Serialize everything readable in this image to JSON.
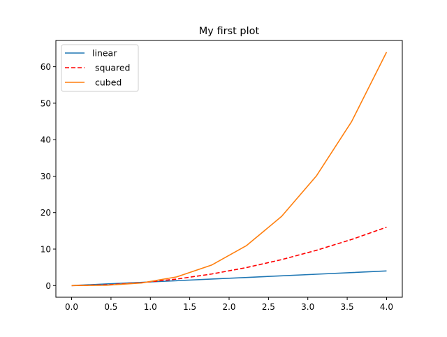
{
  "chart_data": {
    "type": "line",
    "title": "My first plot",
    "xlabel": "",
    "ylabel": "",
    "xlim": [
      -0.2,
      4.2
    ],
    "ylim": [
      -3.2,
      67.2
    ],
    "xticks": [
      "0.0",
      "0.5",
      "1.0",
      "1.5",
      "2.0",
      "2.5",
      "3.0",
      "3.5",
      "4.0"
    ],
    "xtick_values": [
      0,
      0.5,
      1,
      1.5,
      2,
      2.5,
      3,
      3.5,
      4
    ],
    "yticks": [
      "0",
      "10",
      "20",
      "30",
      "40",
      "50",
      "60"
    ],
    "ytick_values": [
      0,
      10,
      20,
      30,
      40,
      50,
      60
    ],
    "grid": false,
    "legend_position": "top-left",
    "x": [
      0,
      0.444,
      0.889,
      1.333,
      1.778,
      2.222,
      2.667,
      3.111,
      3.556,
      4.0
    ],
    "series": [
      {
        "name": "linear",
        "color": "#1f77b4",
        "dash": "solid",
        "values": [
          0,
          0.444,
          0.889,
          1.333,
          1.778,
          2.222,
          2.667,
          3.111,
          3.556,
          4.0
        ]
      },
      {
        "name": " squared",
        "color": "#ff0000",
        "dash": "dashed",
        "values": [
          0,
          0.198,
          0.79,
          1.778,
          3.16,
          4.938,
          7.111,
          9.679,
          12.642,
          16.0
        ]
      },
      {
        "name": " cubed",
        "color": "#ff7f0e",
        "dash": "solid",
        "values": [
          0,
          0.088,
          0.702,
          2.37,
          5.619,
          10.974,
          18.963,
          30.112,
          44.949,
          64.0
        ]
      }
    ]
  }
}
